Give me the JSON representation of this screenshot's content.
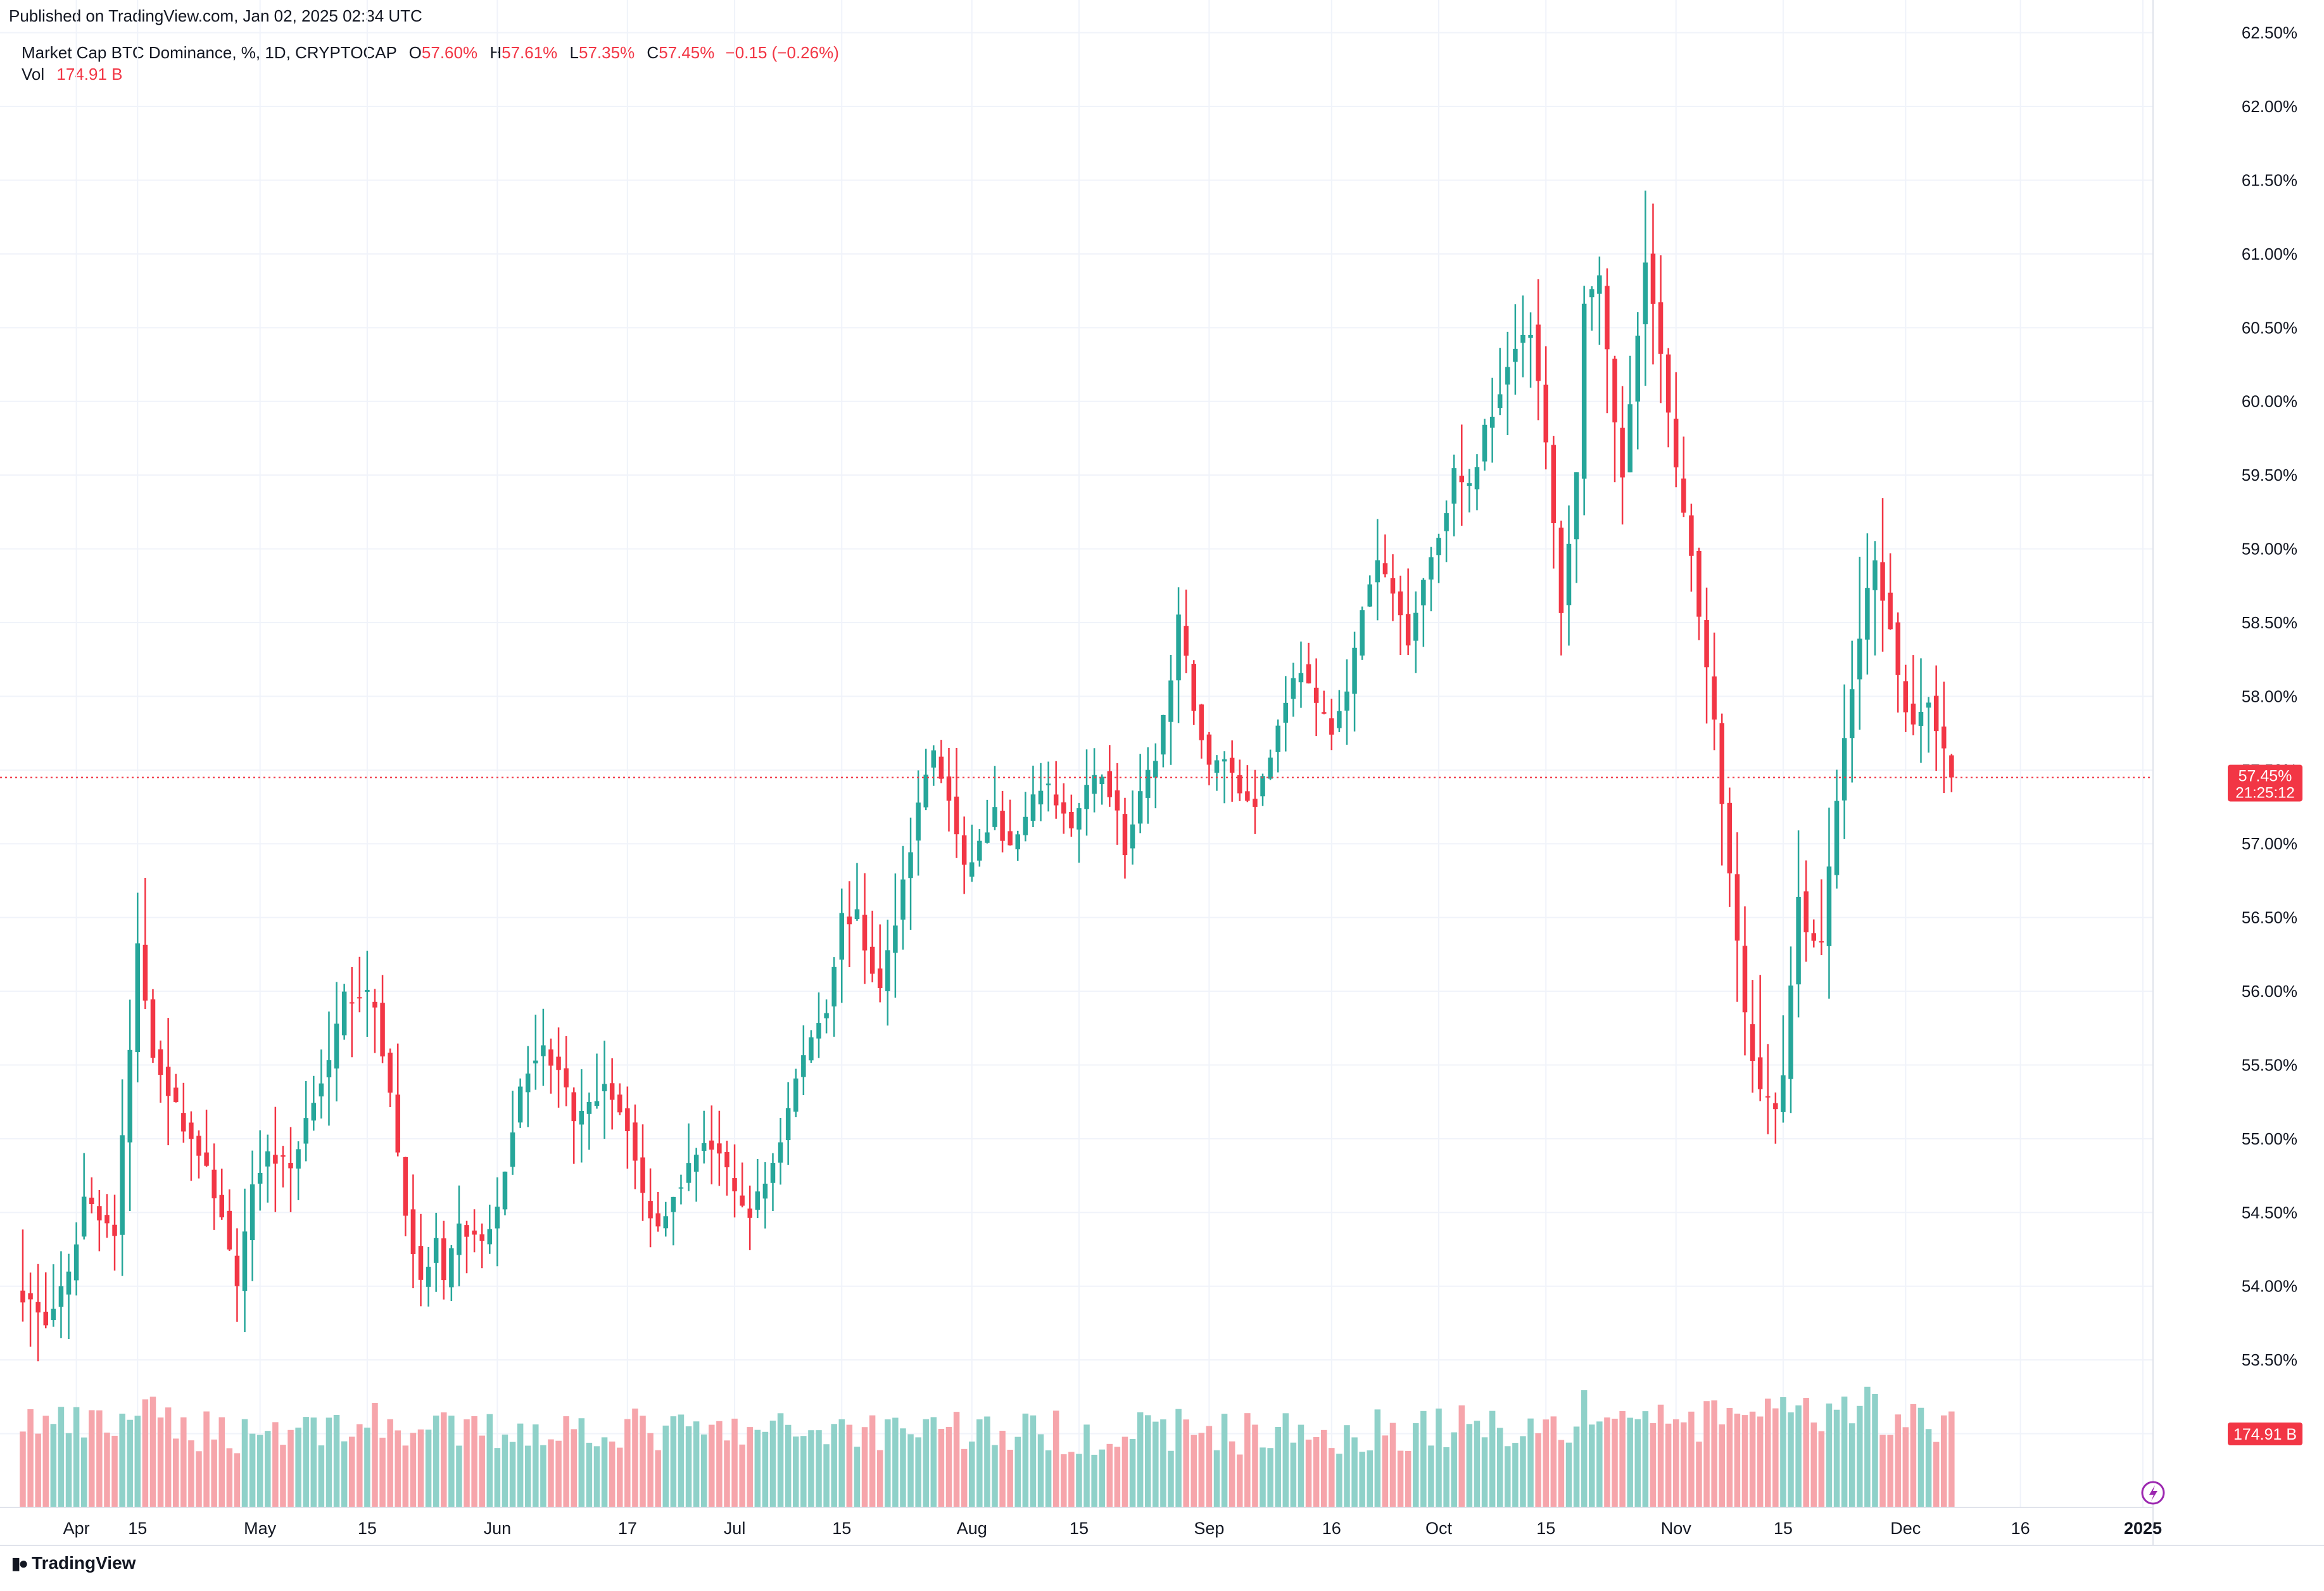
{
  "published": "Published on TradingView.com, Jan 02, 2025 02:34 UTC",
  "legend": {
    "symbol": "Market Cap BTC Dominance, %, 1D, CRYPTOCAP",
    "open_label": "O",
    "open": "57.60%",
    "high_label": "H",
    "high": "57.61%",
    "low_label": "L",
    "low": "57.35%",
    "close_label": "C",
    "close": "57.45%",
    "change": "−0.15 (−0.26%)",
    "vol_label": "Vol",
    "vol": "174.91 B"
  },
  "price_tag": {
    "value": "57.45%",
    "countdown": "21:25:12"
  },
  "volume_tag": "174.91 B",
  "footer": {
    "brand": "TradingView"
  },
  "colors": {
    "up": "#26a69a",
    "down": "#f23645",
    "up_vol": "#8fd1c9",
    "down_vol": "#f6a5ab",
    "grid": "#f0f3fa"
  },
  "chart_data": {
    "type": "candlestick",
    "title": "Market Cap BTC Dominance, %, 1D, CRYPTOCAP",
    "ylabel": "%",
    "ylim": [
      52.5,
      62.55
    ],
    "y_ticks": [
      "53.00%",
      "53.50%",
      "54.00%",
      "54.50%",
      "55.00%",
      "55.50%",
      "56.00%",
      "56.50%",
      "57.00%",
      "57.50%",
      "58.00%",
      "58.50%",
      "59.00%",
      "59.50%",
      "60.00%",
      "60.50%",
      "61.00%",
      "61.50%",
      "62.00%",
      "62.50%"
    ],
    "x_ticks": [
      {
        "label": "Apr",
        "day": 7
      },
      {
        "label": "15",
        "day": 15
      },
      {
        "label": "May",
        "day": 31
      },
      {
        "label": "15",
        "day": 45
      },
      {
        "label": "Jun",
        "day": 62
      },
      {
        "label": "17",
        "day": 79
      },
      {
        "label": "Jul",
        "day": 93
      },
      {
        "label": "15",
        "day": 107
      },
      {
        "label": "Aug",
        "day": 124
      },
      {
        "label": "15",
        "day": 138
      },
      {
        "label": "Sep",
        "day": 155
      },
      {
        "label": "16",
        "day": 171
      },
      {
        "label": "Oct",
        "day": 185
      },
      {
        "label": "15",
        "day": 199
      },
      {
        "label": "Nov",
        "day": 216
      },
      {
        "label": "15",
        "day": 230
      },
      {
        "label": "Dec",
        "day": 246
      },
      {
        "label": "16",
        "day": 261
      },
      {
        "label": "2025",
        "day": 277
      }
    ],
    "anchors": [
      [
        0,
        53.95,
        1.0
      ],
      [
        3,
        53.75,
        0.85
      ],
      [
        6,
        54.05,
        0.8
      ],
      [
        8,
        54.6,
        0.75
      ],
      [
        10,
        54.5,
        0.7
      ],
      [
        12,
        54.35,
        0.85
      ],
      [
        14,
        55.6,
        1.1
      ],
      [
        15,
        56.3,
        1.3
      ],
      [
        17,
        55.6,
        1.0
      ],
      [
        20,
        55.2,
        0.75
      ],
      [
        23,
        54.9,
        0.7
      ],
      [
        26,
        54.5,
        0.7
      ],
      [
        28,
        53.95,
        0.6
      ],
      [
        30,
        54.7,
        0.7
      ],
      [
        32,
        54.9,
        0.75
      ],
      [
        35,
        54.8,
        0.7
      ],
      [
        38,
        55.3,
        0.75
      ],
      [
        40,
        55.5,
        0.8
      ],
      [
        42,
        55.95,
        0.85
      ],
      [
        44,
        56.0,
        0.9
      ],
      [
        46,
        55.9,
        0.85
      ],
      [
        48,
        55.3,
        0.8
      ],
      [
        50,
        54.5,
        0.75
      ],
      [
        52,
        54.0,
        0.6
      ],
      [
        54,
        54.3,
        0.6
      ],
      [
        55,
        54.0,
        0.6
      ],
      [
        57,
        54.4,
        0.6
      ],
      [
        60,
        54.3,
        0.6
      ],
      [
        62,
        54.5,
        0.65
      ],
      [
        64,
        55.1,
        0.7
      ],
      [
        66,
        55.5,
        0.7
      ],
      [
        68,
        55.6,
        0.75
      ],
      [
        70,
        55.5,
        0.7
      ],
      [
        72,
        55.1,
        0.7
      ],
      [
        74,
        55.2,
        0.75
      ],
      [
        76,
        55.4,
        0.75
      ],
      [
        77,
        55.3,
        0.8
      ],
      [
        79,
        55.1,
        0.7
      ],
      [
        81,
        54.6,
        0.7
      ],
      [
        83,
        54.4,
        0.65
      ],
      [
        85,
        54.65,
        0.6
      ],
      [
        87,
        54.8,
        0.6
      ],
      [
        89,
        55.0,
        0.6
      ],
      [
        91,
        54.9,
        0.6
      ],
      [
        93,
        54.6,
        0.6
      ],
      [
        95,
        54.5,
        0.6
      ],
      [
        97,
        54.7,
        0.6
      ],
      [
        99,
        55.0,
        0.6
      ],
      [
        101,
        55.4,
        0.7
      ],
      [
        103,
        55.7,
        0.7
      ],
      [
        105,
        55.9,
        0.75
      ],
      [
        107,
        56.5,
        0.75
      ],
      [
        109,
        56.5,
        0.7
      ],
      [
        110,
        56.3,
        0.7
      ],
      [
        112,
        56.0,
        0.7
      ],
      [
        114,
        56.5,
        0.8
      ],
      [
        116,
        57.0,
        0.8
      ],
      [
        118,
        57.5,
        0.9
      ],
      [
        119,
        57.6,
        0.9
      ],
      [
        121,
        57.3,
        0.85
      ],
      [
        123,
        56.8,
        0.7
      ],
      [
        125,
        57.0,
        0.65
      ],
      [
        127,
        57.2,
        0.65
      ],
      [
        129,
        56.95,
        0.6
      ],
      [
        131,
        57.15,
        0.6
      ],
      [
        133,
        57.4,
        0.6
      ],
      [
        135,
        57.3,
        0.6
      ],
      [
        137,
        57.1,
        0.6
      ],
      [
        139,
        57.35,
        0.6
      ],
      [
        141,
        57.5,
        0.6
      ],
      [
        143,
        57.2,
        0.6
      ],
      [
        144,
        56.95,
        0.6
      ],
      [
        146,
        57.3,
        0.6
      ],
      [
        148,
        57.6,
        0.6
      ],
      [
        150,
        58.1,
        0.7
      ],
      [
        151,
        58.5,
        0.75
      ],
      [
        153,
        57.95,
        0.7
      ],
      [
        155,
        57.5,
        0.7
      ],
      [
        157,
        57.6,
        0.65
      ],
      [
        159,
        57.35,
        0.6
      ],
      [
        161,
        57.3,
        0.6
      ],
      [
        163,
        57.6,
        0.6
      ],
      [
        165,
        58.0,
        0.6
      ],
      [
        167,
        58.2,
        0.6
      ],
      [
        169,
        57.9,
        0.6
      ],
      [
        171,
        57.8,
        0.6
      ],
      [
        173,
        58.0,
        0.6
      ],
      [
        175,
        58.6,
        0.65
      ],
      [
        177,
        58.9,
        0.7
      ],
      [
        179,
        58.7,
        0.7
      ],
      [
        181,
        58.4,
        0.7
      ],
      [
        183,
        58.8,
        0.75
      ],
      [
        185,
        59.1,
        0.75
      ],
      [
        187,
        59.5,
        0.8
      ],
      [
        189,
        59.4,
        0.8
      ],
      [
        191,
        59.8,
        0.8
      ],
      [
        193,
        60.1,
        0.8
      ],
      [
        195,
        60.4,
        0.8
      ],
      [
        197,
        60.5,
        0.8
      ],
      [
        199,
        59.7,
        0.8
      ],
      [
        201,
        58.6,
        0.75
      ],
      [
        203,
        59.5,
        0.9
      ],
      [
        204,
        60.7,
        1.2
      ],
      [
        206,
        60.8,
        1.2
      ],
      [
        208,
        59.8,
        1.1
      ],
      [
        209,
        59.5,
        1.0
      ],
      [
        211,
        60.5,
        1.0
      ],
      [
        212,
        61.0,
        1.2
      ],
      [
        214,
        60.3,
        1.0
      ],
      [
        216,
        59.5,
        0.95
      ],
      [
        218,
        59.0,
        0.95
      ],
      [
        219,
        58.5,
        0.9
      ],
      [
        221,
        57.8,
        0.9
      ],
      [
        223,
        56.8,
        1.0
      ],
      [
        225,
        55.8,
        1.3
      ],
      [
        227,
        55.3,
        1.4
      ],
      [
        229,
        55.2,
        1.3
      ],
      [
        230,
        55.4,
        1.1
      ],
      [
        232,
        56.7,
        1.1
      ],
      [
        233,
        56.4,
        1.0
      ],
      [
        235,
        56.3,
        0.95
      ],
      [
        237,
        57.3,
        0.95
      ],
      [
        239,
        58.1,
        1.1
      ],
      [
        241,
        58.7,
        1.4
      ],
      [
        242,
        58.9,
        1.3
      ],
      [
        244,
        58.5,
        1.0
      ],
      [
        245,
        58.1,
        0.95
      ],
      [
        247,
        57.8,
        0.9
      ],
      [
        249,
        58.0,
        0.85
      ],
      [
        251,
        57.6,
        0.85
      ],
      [
        252,
        57.45,
        1.1
      ]
    ]
  }
}
